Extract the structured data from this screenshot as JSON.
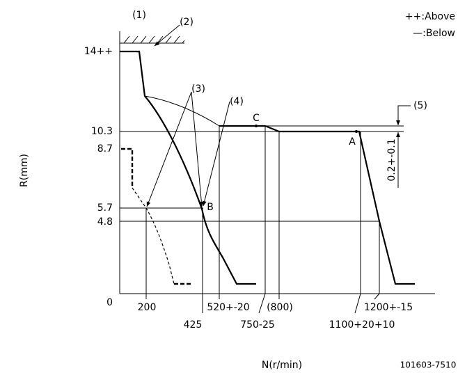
{
  "legend": {
    "above": "++:Above",
    "below": "—:Below"
  },
  "callouts": [
    "(1)",
    "(2)",
    "(3)",
    "(4)",
    "(5)"
  ],
  "points": [
    "A",
    "B",
    "C"
  ],
  "y_axis": {
    "title": "R(mm)",
    "labels": [
      "14++",
      "10.3",
      "8.7",
      "5.7",
      "4.8",
      "0"
    ]
  },
  "x_axis": {
    "title": "N(r/min)",
    "labels_upper": [
      "200",
      "520+-20",
      "(800)",
      "1200+-15"
    ],
    "labels_lower": [
      "425",
      "750-25",
      "1100+20+10"
    ]
  },
  "tolerance": "0.2+-0.1",
  "drawing_number": "101603-7510"
}
